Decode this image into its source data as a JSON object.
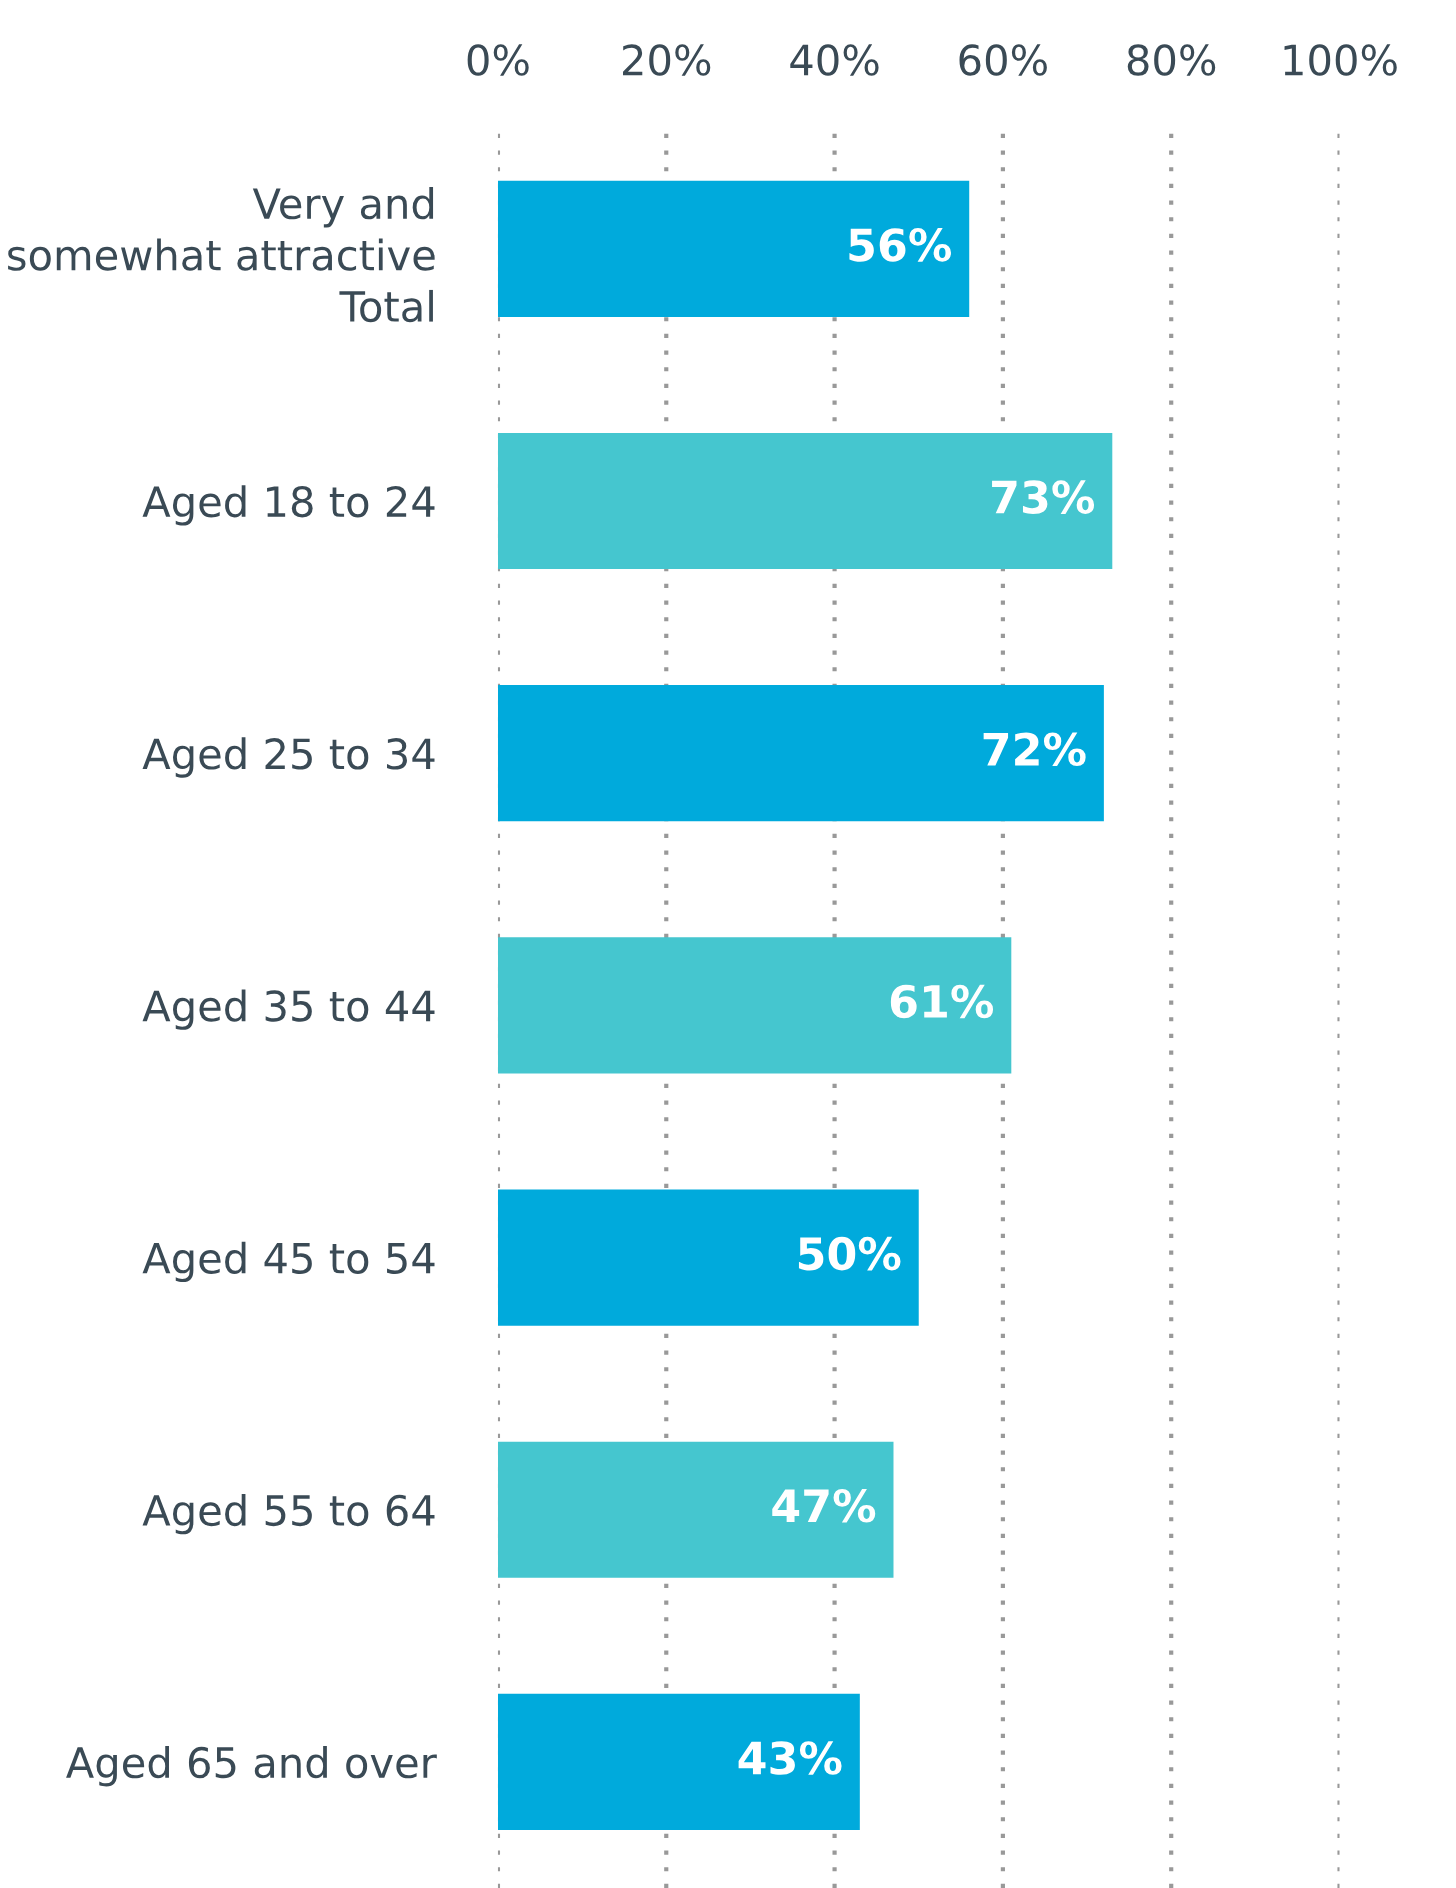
{
  "chart_data": {
    "type": "bar",
    "orientation": "horizontal",
    "categories": [
      "Very and\nsomewhat attractive\nTotal",
      "Aged 18 to 24",
      "Aged 25 to 34",
      "Aged 35 to 44",
      "Aged 45 to 54",
      "Aged 55 to 64",
      "Aged 65 and over"
    ],
    "values": [
      56,
      73,
      72,
      61,
      50,
      47,
      43
    ],
    "colors": [
      "#00aadc",
      "#45c6cf",
      "#00aadc",
      "#45c6cf",
      "#00aadc",
      "#45c6cf",
      "#00aadc"
    ],
    "value_labels": [
      "56%",
      "73%",
      "72%",
      "61%",
      "50%",
      "47%",
      "43%"
    ],
    "xlim": [
      0,
      100
    ],
    "xticks": [
      {
        "value": 0,
        "label": "0%"
      },
      {
        "value": 20,
        "label": "20%"
      },
      {
        "value": 40,
        "label": "40%"
      },
      {
        "value": 60,
        "label": "60%"
      },
      {
        "value": 80,
        "label": "80%"
      },
      {
        "value": 100,
        "label": "100%"
      }
    ],
    "grid": "x"
  }
}
